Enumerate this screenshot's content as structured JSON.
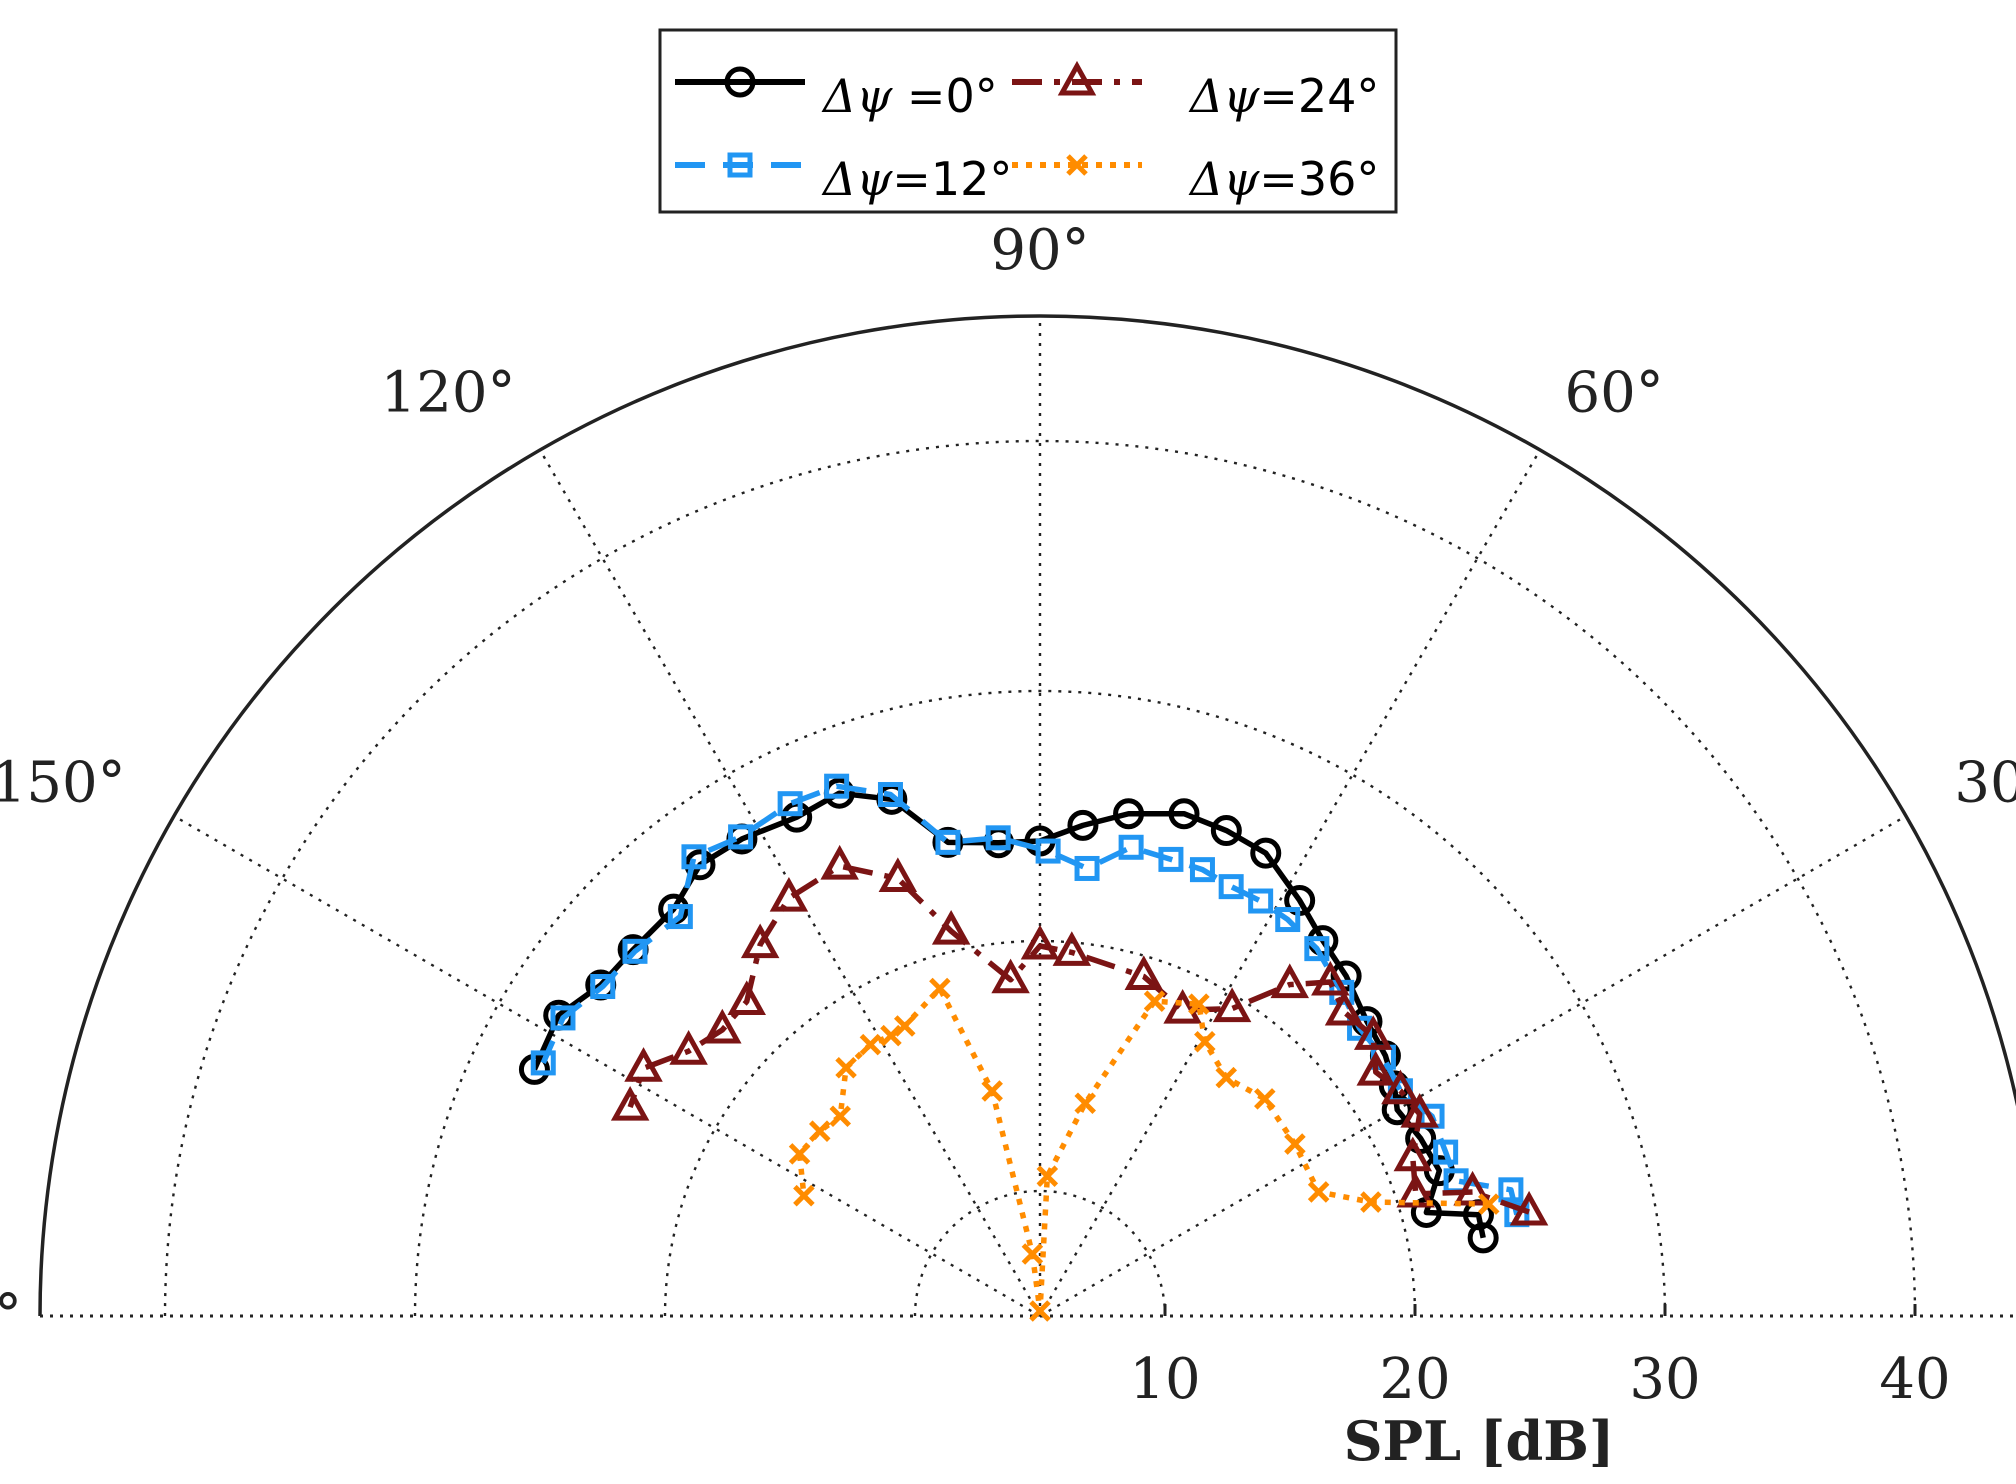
{
  "chart_data": {
    "type": "polar-line",
    "title": "",
    "rlabel": "SPL [dB]",
    "r_axis_min": 5,
    "r_axis_max": 45,
    "r_ticks": [
      10,
      20,
      30,
      40
    ],
    "r_tick_labels": [
      "10",
      "20",
      "30",
      "40"
    ],
    "theta_ticks": [
      0,
      30,
      60,
      90,
      120,
      150,
      180
    ],
    "theta_tick_labels": [
      "0°",
      "30°",
      "60°",
      "90°",
      "120°",
      "150°",
      "180°"
    ],
    "theta_range": [
      0,
      180
    ],
    "grid": true,
    "legend_position": "top-center",
    "series": [
      {
        "name": "0°",
        "legend_prefix": "Δψ =",
        "color": "#000000",
        "dash": "solid",
        "marker": "circle",
        "points": [
          {
            "theta": 10,
            "r": 23
          },
          {
            "theta": 13,
            "r": 23
          },
          {
            "theta": 15,
            "r": 21
          },
          {
            "theta": 20,
            "r": 22
          },
          {
            "theta": 25,
            "r": 21.8
          },
          {
            "theta": 30,
            "r": 21.5
          },
          {
            "theta": 33,
            "r": 21.9
          },
          {
            "theta": 37,
            "r": 22.3
          },
          {
            "theta": 42,
            "r": 22.6
          },
          {
            "theta": 48,
            "r": 23.3
          },
          {
            "theta": 53,
            "r": 23.8
          },
          {
            "theta": 58,
            "r": 24.6
          },
          {
            "theta": 64,
            "r": 25.6
          },
          {
            "theta": 69,
            "r": 25.8
          },
          {
            "theta": 74,
            "r": 25.9
          },
          {
            "theta": 80,
            "r": 25.4
          },
          {
            "theta": 85,
            "r": 24.7
          },
          {
            "theta": 90,
            "r": 24.0
          },
          {
            "theta": 95,
            "r": 24.0
          },
          {
            "theta": 101,
            "r": 24.3
          },
          {
            "theta": 106,
            "r": 26.5
          },
          {
            "theta": 111,
            "r": 27.4
          },
          {
            "theta": 116,
            "r": 27.2
          },
          {
            "theta": 122,
            "r": 27.5
          },
          {
            "theta": 127,
            "r": 27.6
          },
          {
            "theta": 132,
            "r": 26.9
          },
          {
            "theta": 138,
            "r": 26.9
          },
          {
            "theta": 143,
            "r": 27.0
          },
          {
            "theta": 148,
            "r": 27.7
          },
          {
            "theta": 154,
            "r": 27.5
          }
        ]
      },
      {
        "name": "12°",
        "legend_prefix": "Δψ=",
        "color": "#2196f3",
        "dash": "dashed",
        "marker": "square",
        "points": [
          {
            "theta": 12,
            "r": 24.5
          },
          {
            "theta": 15,
            "r": 24.5
          },
          {
            "theta": 18,
            "r": 22.5
          },
          {
            "theta": 22,
            "r": 22.5
          },
          {
            "theta": 27,
            "r": 22.6
          },
          {
            "theta": 32,
            "r": 22.0
          },
          {
            "theta": 37,
            "r": 22.2
          },
          {
            "theta": 42,
            "r": 22.2
          },
          {
            "theta": 47,
            "r": 22.7
          },
          {
            "theta": 53,
            "r": 23.4
          },
          {
            "theta": 58,
            "r": 23.7
          },
          {
            "theta": 62,
            "r": 23.8
          },
          {
            "theta": 66,
            "r": 23.8
          },
          {
            "theta": 70,
            "r": 24.0
          },
          {
            "theta": 74,
            "r": 24.0
          },
          {
            "theta": 79,
            "r": 24.1
          },
          {
            "theta": 84,
            "r": 23.0
          },
          {
            "theta": 89,
            "r": 23.6
          },
          {
            "theta": 95,
            "r": 24.2
          },
          {
            "theta": 101,
            "r": 24.3
          },
          {
            "theta": 106,
            "r": 26.7
          },
          {
            "theta": 111,
            "r": 27.7
          },
          {
            "theta": 116,
            "r": 27.8
          },
          {
            "theta": 122,
            "r": 27.6
          },
          {
            "theta": 127,
            "r": 28.0
          },
          {
            "theta": 132,
            "r": 26.5
          },
          {
            "theta": 138,
            "r": 26.8
          },
          {
            "theta": 143,
            "r": 26.9
          },
          {
            "theta": 148,
            "r": 27.5
          },
          {
            "theta": 153,
            "r": 27.3
          }
        ]
      },
      {
        "name": "24°",
        "legend_prefix": "Δψ=",
        "color": "#7b1414",
        "dash": "dashdot",
        "marker": "triangle",
        "points": [
          {
            "theta": 12,
            "r": 25
          },
          {
            "theta": 16,
            "r": 23
          },
          {
            "theta": 18,
            "r": 20.8
          },
          {
            "theta": 23,
            "r": 21.2
          },
          {
            "theta": 28,
            "r": 22.2
          },
          {
            "theta": 32,
            "r": 22.0
          },
          {
            "theta": 36,
            "r": 21.6
          },
          {
            "theta": 40,
            "r": 22.4
          },
          {
            "theta": 45,
            "r": 22.2
          },
          {
            "theta": 49,
            "r": 22.7
          },
          {
            "theta": 53,
            "r": 21.6
          },
          {
            "theta": 58,
            "r": 19.5
          },
          {
            "theta": 65,
            "r": 18.5
          },
          {
            "theta": 73,
            "r": 19.2
          },
          {
            "theta": 85,
            "r": 19.6
          },
          {
            "theta": 90,
            "r": 19.8
          },
          {
            "theta": 95,
            "r": 18.5
          },
          {
            "theta": 103,
            "r": 20.8
          },
          {
            "theta": 108,
            "r": 23.4
          },
          {
            "theta": 114,
            "r": 24.7
          },
          {
            "theta": 121,
            "r": 24.5
          },
          {
            "theta": 127,
            "r": 23.6
          },
          {
            "theta": 133,
            "r": 22.2
          },
          {
            "theta": 138,
            "r": 22.1
          },
          {
            "theta": 143,
            "r": 22.6
          },
          {
            "theta": 148,
            "r": 23.7
          },
          {
            "theta": 153,
            "r": 23.4
          }
        ]
      },
      {
        "name": "36°",
        "legend_prefix": "Δψ=",
        "color": "#ff8c00",
        "dash": "dotted",
        "marker": "x",
        "points": [
          {
            "theta": 14,
            "r": 23.5
          },
          {
            "theta": 19,
            "r": 19.0
          },
          {
            "theta": 24,
            "r": 17.2
          },
          {
            "theta": 34,
            "r": 17.3
          },
          {
            "theta": 44,
            "r": 17.5
          },
          {
            "theta": 52,
            "r": 17.1
          },
          {
            "theta": 59,
            "r": 17.8
          },
          {
            "theta": 63,
            "r": 19.0
          },
          {
            "theta": 70,
            "r": 18.4
          },
          {
            "theta": 78,
            "r": 13.7
          },
          {
            "theta": 87,
            "r": 10.6
          },
          {
            "theta": 90,
            "r": 5.2
          },
          {
            "theta": 97,
            "r": 7.5
          },
          {
            "theta": 102,
            "r": 14.2
          },
          {
            "theta": 107,
            "r": 18.7
          },
          {
            "theta": 115,
            "r": 17.8
          },
          {
            "theta": 118,
            "r": 17.7
          },
          {
            "theta": 122,
            "r": 17.8
          },
          {
            "theta": 128,
            "r": 17.6
          },
          {
            "theta": 135,
            "r": 16.3
          },
          {
            "theta": 140,
            "r": 16.5
          },
          {
            "theta": 146,
            "r": 16.6
          },
          {
            "theta": 153,
            "r": 15.6
          }
        ]
      }
    ]
  }
}
